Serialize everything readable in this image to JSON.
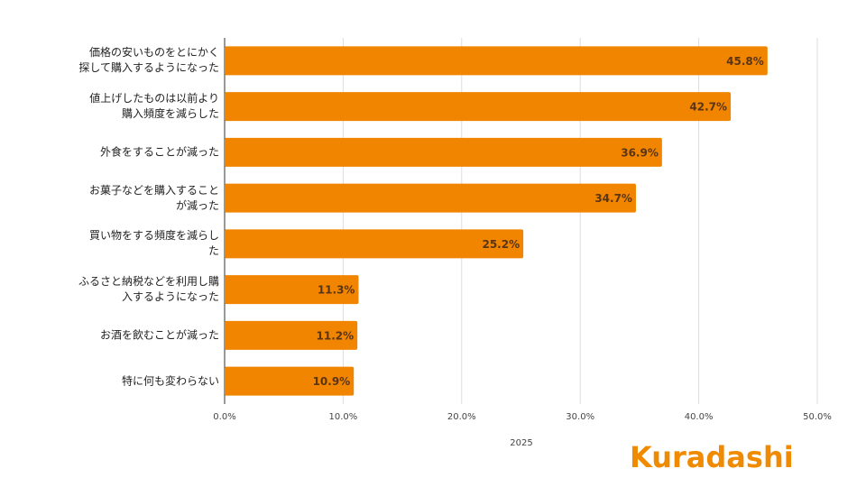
{
  "chart_data": {
    "type": "bar",
    "orientation": "horizontal",
    "categories": [
      "価格の安いものをとにかく\n探して購入するようになった",
      "値上げしたものは以前より\n購入頻度を減らした",
      "外食をすることが減った",
      "お菓子などを購入すること\nが減った",
      "買い物をする頻度を減らし\nた",
      "ふるさと納税などを利用し購\n入するようになった",
      "お酒を飲むことが減った",
      "特に何も変わらない"
    ],
    "values": [
      45.8,
      42.7,
      36.9,
      34.7,
      25.2,
      11.3,
      11.2,
      10.9
    ],
    "value_labels": [
      "45.8%",
      "42.7%",
      "36.9%",
      "34.7%",
      "25.2%",
      "11.3%",
      "11.2%",
      "10.9%"
    ],
    "color": "#f28500",
    "xlabel": "2025",
    "xlim": [
      0,
      50
    ],
    "xticks": [
      {
        "value": 0,
        "label": "0.0%"
      },
      {
        "value": 10,
        "label": "10.0%"
      },
      {
        "value": 20,
        "label": "20.0%"
      },
      {
        "value": 30,
        "label": "30.0%"
      },
      {
        "value": 40,
        "label": "40.0%"
      },
      {
        "value": 50,
        "label": "50.0%"
      }
    ],
    "grid": true
  },
  "logo": "Kuradashi"
}
